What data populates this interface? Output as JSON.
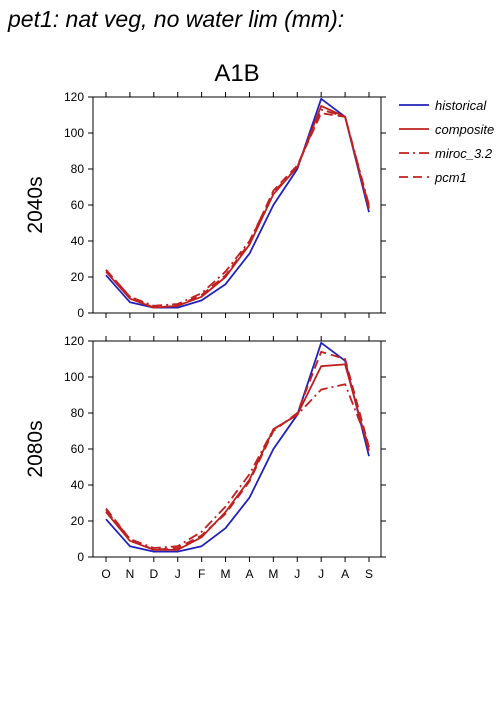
{
  "title": "pet1: nat veg, no water lim (mm):",
  "chart_data": {
    "type": "line",
    "scenario": "A1B",
    "categories": [
      "O",
      "N",
      "D",
      "J",
      "F",
      "M",
      "A",
      "M",
      "J",
      "J",
      "A",
      "S"
    ],
    "ylim": [
      0,
      120
    ],
    "yticks": [
      0,
      20,
      40,
      60,
      80,
      100,
      120
    ],
    "legend_position": "top-right",
    "legend": [
      {
        "name": "historical",
        "color": "#2222bb",
        "dash": "solid"
      },
      {
        "name": "composite",
        "color": "#c0201f",
        "dash": "solid"
      },
      {
        "name": "miroc_3.2",
        "color": "#c0201f",
        "dash": "dashdot"
      },
      {
        "name": "pcm1",
        "color": "#c0201f",
        "dash": "dashed"
      }
    ],
    "panels": [
      {
        "label": "2040s",
        "series": [
          {
            "name": "historical",
            "values": [
              21,
              6,
              3,
              3,
              7,
              16,
              33,
              60,
              80,
              119,
              109,
              56
            ]
          },
          {
            "name": "composite",
            "values": [
              23,
              8,
              3,
              4,
              9,
              20,
              38,
              66,
              81,
              115,
              109,
              58
            ]
          },
          {
            "name": "miroc_3.2",
            "values": [
              24,
              9,
              4,
              5,
              11,
              23,
              40,
              67,
              81,
              113,
              109,
              60
            ]
          },
          {
            "name": "pcm1",
            "values": [
              24,
              9,
              3,
              4,
              10,
              21,
              39,
              68,
              82,
              111,
              109,
              59
            ]
          }
        ]
      },
      {
        "label": "2080s",
        "series": [
          {
            "name": "historical",
            "values": [
              21,
              6,
              3,
              3,
              6,
              16,
              33,
              60,
              79,
              119,
              109,
              56
            ]
          },
          {
            "name": "composite",
            "values": [
              25,
              9,
              4,
              4,
              11,
              25,
              43,
              71,
              79,
              106,
              107,
              59
            ]
          },
          {
            "name": "miroc_3.2",
            "values": [
              26,
              10,
              5,
              6,
              14,
              28,
              46,
              71,
              79,
              93,
              96,
              62
            ]
          },
          {
            "name": "pcm1",
            "values": [
              27,
              10,
              4,
              5,
              12,
              24,
              42,
              70,
              80,
              114,
              110,
              61
            ]
          }
        ]
      }
    ]
  }
}
